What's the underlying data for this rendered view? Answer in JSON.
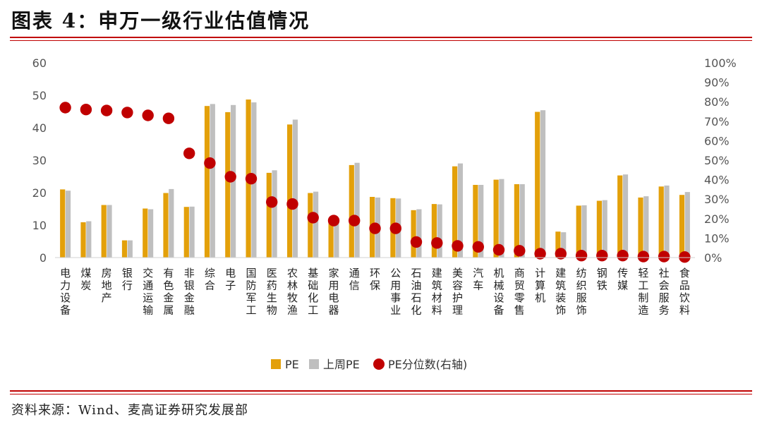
{
  "header": {
    "title": "图表 4：申万一级行业估值情况"
  },
  "footer": {
    "source": "资料来源：Wind、麦高证券研究发展部"
  },
  "colors": {
    "pe": "#e3a00a",
    "pe_last_week": "#bfbfbf",
    "percentile": "#c00000",
    "rule": "#c00000"
  },
  "chart_data": {
    "type": "bar",
    "categories": [
      "电力设备",
      "煤炭",
      "房地产",
      "银行",
      "交通运输",
      "有色金属",
      "非银金融",
      "综合",
      "电子",
      "国防军工",
      "医药生物",
      "农林牧渔",
      "基础化工",
      "家用电器",
      "通信",
      "环保",
      "公用事业",
      "石油石化",
      "建筑材料",
      "美容护理",
      "汽车",
      "机械设备",
      "商贸零售",
      "计算机",
      "建筑装饰",
      "纺织服饰",
      "钢铁",
      "传媒",
      "轻工制造",
      "社会服务",
      "食品饮料"
    ],
    "series": [
      {
        "name": "PE",
        "axis": "left",
        "type": "bar",
        "values": [
          21,
          10.9,
          16.2,
          5.3,
          15.1,
          19.9,
          15.6,
          46.7,
          44.8,
          48.7,
          26.1,
          41,
          19.9,
          12,
          28.5,
          18.7,
          18.3,
          14.6,
          16.5,
          28.1,
          22.4,
          24,
          22.6,
          44.9,
          8,
          16,
          17.5,
          25.3,
          18.5,
          21.9,
          19.3
        ]
      },
      {
        "name": "上周PE",
        "axis": "left",
        "type": "bar",
        "values": [
          20.6,
          11.2,
          16.2,
          5.3,
          14.9,
          21.1,
          15.7,
          47.3,
          47,
          47.8,
          26.9,
          42.5,
          20.3,
          11.5,
          29.2,
          18.5,
          18.2,
          14.9,
          16.4,
          29,
          22.4,
          24.2,
          22.6,
          45.4,
          7.8,
          16.1,
          17.7,
          25.6,
          18.9,
          22.2,
          20.2
        ]
      },
      {
        "name": "PE分位数(右轴)",
        "axis": "right",
        "type": "scatter",
        "values": [
          77,
          76,
          75.5,
          74.5,
          73,
          71.5,
          53.5,
          48.5,
          41.5,
          40.5,
          28.5,
          27.5,
          20.5,
          19,
          19,
          15,
          15,
          8,
          7.5,
          6,
          5.5,
          4,
          3.5,
          2,
          2,
          1,
          1,
          1,
          0.5,
          0.5,
          0.3
        ]
      }
    ],
    "left_axis": {
      "ylim": [
        0,
        60
      ],
      "ticks": [
        "0",
        "10",
        "20",
        "30",
        "40",
        "50",
        "60"
      ]
    },
    "right_axis": {
      "ylim": [
        0,
        100
      ],
      "ticks": [
        "0%",
        "10%",
        "20%",
        "30%",
        "40%",
        "50%",
        "60%",
        "70%",
        "80%",
        "90%",
        "100%"
      ]
    },
    "legend": {
      "position": "bottom",
      "items": [
        "PE",
        "上周PE",
        "PE分位数(右轴)"
      ]
    }
  }
}
